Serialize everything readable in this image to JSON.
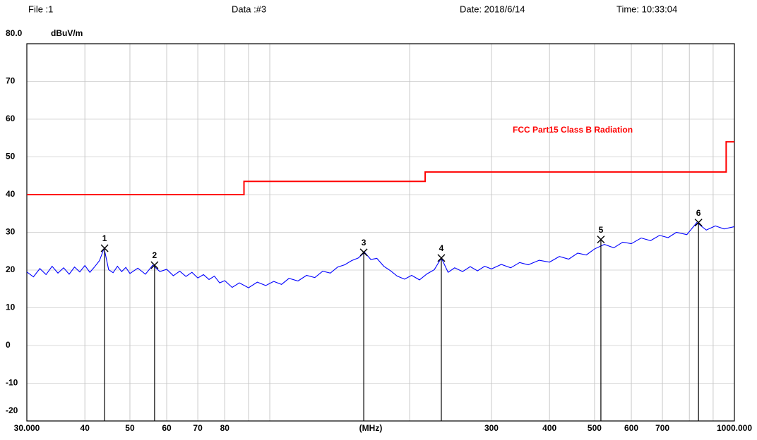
{
  "header": {
    "file": "File :1",
    "data": "Data :#3",
    "date": "Date: 2018/6/14",
    "time": "Time: 10:33:04"
  },
  "chart_data": {
    "type": "line",
    "y_label": "dBuV/m",
    "x_label": "(MHz)",
    "x_scale": "log",
    "grid": true,
    "xlim": [
      30,
      1000
    ],
    "ylim": [
      -20,
      80
    ],
    "xticks": [
      {
        "value": 30,
        "label": "30.000"
      },
      40,
      50,
      60,
      70,
      80,
      300,
      400,
      500,
      600,
      700,
      {
        "value": 1000,
        "label": "1000.000"
      }
    ],
    "minor_xgrid": [
      90,
      100,
      200,
      800,
      900
    ],
    "yticks": [
      {
        "value": 80,
        "label": "80.0"
      },
      70,
      60,
      50,
      40,
      30,
      20,
      10,
      0,
      -10,
      -20
    ],
    "series": [
      {
        "color": "#0000ff",
        "x": [
          30,
          31,
          32,
          33,
          34,
          35,
          36,
          37,
          38,
          39,
          40,
          41,
          42,
          43,
          44,
          45,
          46,
          47,
          48,
          49,
          50,
          52,
          54,
          56,
          58,
          60,
          62,
          64,
          66,
          68,
          70,
          72,
          74,
          76,
          78,
          80,
          83,
          86,
          90,
          94,
          98,
          102,
          106,
          110,
          115,
          120,
          125,
          130,
          135,
          140,
          145,
          150,
          155,
          160,
          165,
          170,
          176,
          182,
          188,
          195,
          202,
          210,
          218,
          226,
          234,
          242,
          250,
          260,
          270,
          280,
          290,
          300,
          315,
          330,
          345,
          360,
          380,
          400,
          420,
          440,
          460,
          480,
          500,
          525,
          550,
          575,
          600,
          630,
          660,
          690,
          720,
          750,
          790,
          830,
          870,
          910,
          950,
          1000
        ],
        "values": [
          19.5,
          18.2,
          20.4,
          18.8,
          21.0,
          19.2,
          20.6,
          18.9,
          20.8,
          19.5,
          21.2,
          19.4,
          20.9,
          22.5,
          25.8,
          20.1,
          19.3,
          21.0,
          19.6,
          20.7,
          19.1,
          20.5,
          18.9,
          21.3,
          19.6,
          20.2,
          18.5,
          19.7,
          18.3,
          19.4,
          17.9,
          18.8,
          17.5,
          18.4,
          16.6,
          17.2,
          15.4,
          16.6,
          15.3,
          16.8,
          15.9,
          17.0,
          16.2,
          17.8,
          17.1,
          18.6,
          18.0,
          19.7,
          19.2,
          20.8,
          21.4,
          22.5,
          23.2,
          24.7,
          22.8,
          23.1,
          21.0,
          19.8,
          18.4,
          17.6,
          18.6,
          17.4,
          19.0,
          20.1,
          23.2,
          19.4,
          20.6,
          19.6,
          20.9,
          19.8,
          21.0,
          20.3,
          21.5,
          20.6,
          22.0,
          21.4,
          22.6,
          22.1,
          23.6,
          22.9,
          24.5,
          24.0,
          25.6,
          26.8,
          25.9,
          27.4,
          27.0,
          28.5,
          27.8,
          29.2,
          28.6,
          30.0,
          29.4,
          32.6,
          30.6,
          31.7,
          30.9,
          31.5
        ]
      },
      {
        "name": "FCC Part15 Class B Radiation",
        "color": "#ff0000",
        "x": [
          30,
          88,
          88,
          216,
          216,
          960,
          960,
          1000
        ],
        "values": [
          40,
          40,
          43.5,
          43.5,
          46,
          46,
          54,
          54
        ]
      }
    ],
    "markers": [
      {
        "label": "1",
        "x": 44.1,
        "y": 25.8
      },
      {
        "label": "2",
        "x": 56.5,
        "y": 21.3
      },
      {
        "label": "3",
        "x": 159.3,
        "y": 24.7
      },
      {
        "label": "4",
        "x": 234,
        "y": 23.2
      },
      {
        "label": "5",
        "x": 516,
        "y": 28.1
      },
      {
        "label": "6",
        "x": 837,
        "y": 32.6
      }
    ]
  }
}
